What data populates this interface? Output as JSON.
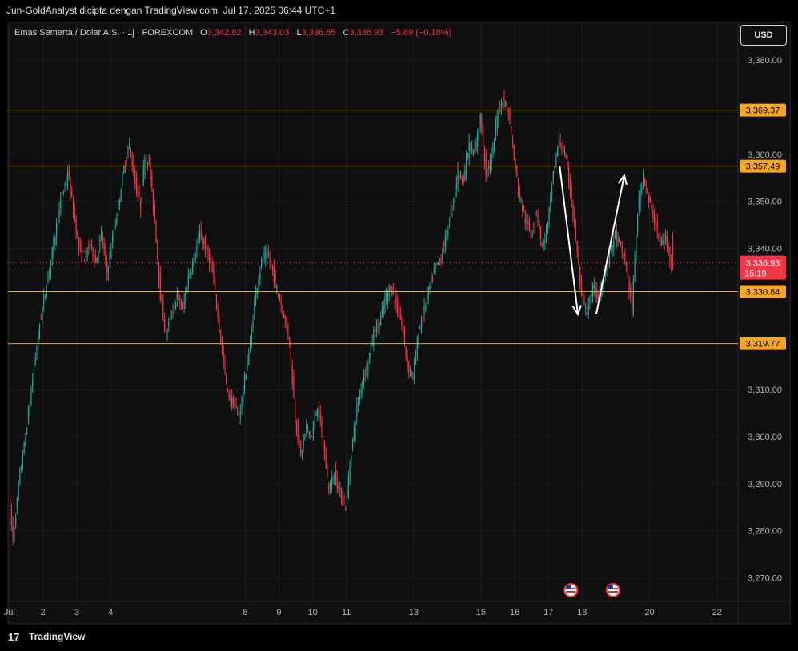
{
  "header": {
    "attribution": "Jun-GoldAnalyst dicipta dengan TradingView.com, Jul 17, 2025 06:44 UTC+1"
  },
  "legend": {
    "symbol": "Emas Semerta / Dolar A.S. · 1j · FOREXCOM",
    "open_label": "O",
    "open": "3,342.82",
    "high_label": "H",
    "high": "3,343.03",
    "low_label": "L",
    "low": "3,336.65",
    "close_label": "C",
    "close": "3,336.93",
    "change": "−5.89 (−0.18%)"
  },
  "currency_button": "USD",
  "footer": {
    "brand": "TradingView",
    "logo_text": "17"
  },
  "colors": {
    "up": "#26a69a",
    "down": "#f23645",
    "level": "#f5a623",
    "arrow": "#ffffff",
    "price_tag": "#f23645"
  },
  "icons": [
    "us-flag-icon",
    "us-flag-icon"
  ],
  "chart_data": {
    "type": "candlestick",
    "yaxis_ticks": [
      "3,380.00",
      "3,360.00",
      "3,350.00",
      "3,340.00",
      "3,310.00",
      "3,300.00",
      "3,290.00",
      "3,280.00",
      "3,270.00"
    ],
    "yaxis_tick_values": [
      3380,
      3360,
      3350,
      3340,
      3310,
      3300,
      3290,
      3280,
      3270
    ],
    "ylim": [
      3265,
      3388
    ],
    "xaxis_ticks": [
      "Jul",
      "2",
      "3",
      "4",
      "8",
      "9",
      "10",
      "11",
      "13",
      "15",
      "16",
      "17",
      "18",
      "20",
      "22"
    ],
    "xaxis_tick_hours": [
      0,
      24,
      48,
      72,
      168,
      192,
      216,
      240,
      288,
      336,
      360,
      384,
      408,
      456,
      504
    ],
    "xlim_hours": [
      -1,
      519
    ],
    "levels": [
      {
        "value": 3369.37,
        "label": "3,369.37"
      },
      {
        "value": 3357.49,
        "label": "3,357.49"
      },
      {
        "value": 3330.84,
        "label": "3,330.84"
      },
      {
        "value": 3319.77,
        "label": "3,319.77"
      }
    ],
    "current_price": {
      "value": 3336.93,
      "label": "3,336.93",
      "countdown": "15:19"
    },
    "arrows": [
      {
        "from": [
          392,
          3357.5
        ],
        "to": [
          405,
          3326
        ]
      },
      {
        "from": [
          418,
          3326
        ],
        "to": [
          438,
          3355.5
        ]
      }
    ],
    "events": [
      {
        "hour": 400,
        "icon": "us-flag-icon"
      },
      {
        "hour": 430,
        "icon": "us-flag-icon"
      }
    ],
    "price_path": [
      [
        0,
        3288
      ],
      [
        3,
        3278
      ],
      [
        8,
        3292
      ],
      [
        12,
        3300
      ],
      [
        17,
        3312
      ],
      [
        22,
        3324
      ],
      [
        28,
        3334
      ],
      [
        33,
        3343
      ],
      [
        38,
        3351
      ],
      [
        42,
        3356
      ],
      [
        46,
        3348
      ],
      [
        50,
        3340
      ],
      [
        54,
        3338
      ],
      [
        58,
        3341
      ],
      [
        62,
        3337
      ],
      [
        66,
        3343
      ],
      [
        70,
        3335
      ],
      [
        74,
        3342
      ],
      [
        78,
        3349
      ],
      [
        82,
        3357
      ],
      [
        86,
        3362
      ],
      [
        90,
        3354
      ],
      [
        94,
        3349
      ],
      [
        97,
        3360
      ],
      [
        100,
        3358
      ],
      [
        104,
        3346
      ],
      [
        108,
        3330
      ],
      [
        112,
        3322
      ],
      [
        116,
        3326
      ],
      [
        120,
        3330
      ],
      [
        124,
        3327
      ],
      [
        128,
        3334
      ],
      [
        132,
        3338
      ],
      [
        136,
        3343
      ],
      [
        140,
        3340
      ],
      [
        144,
        3337
      ],
      [
        148,
        3328
      ],
      [
        152,
        3318
      ],
      [
        156,
        3309
      ],
      [
        160,
        3307
      ],
      [
        164,
        3304
      ],
      [
        168,
        3312
      ],
      [
        172,
        3320
      ],
      [
        176,
        3331
      ],
      [
        180,
        3337
      ],
      [
        184,
        3339
      ],
      [
        188,
        3335
      ],
      [
        192,
        3330
      ],
      [
        196,
        3326
      ],
      [
        200,
        3320
      ],
      [
        204,
        3304
      ],
      [
        208,
        3296
      ],
      [
        212,
        3302
      ],
      [
        216,
        3300
      ],
      [
        220,
        3307
      ],
      [
        224,
        3298
      ],
      [
        228,
        3289
      ],
      [
        232,
        3292
      ],
      [
        236,
        3288
      ],
      [
        240,
        3285
      ],
      [
        244,
        3297
      ],
      [
        248,
        3306
      ],
      [
        252,
        3312
      ],
      [
        256,
        3316
      ],
      [
        260,
        3322
      ],
      [
        264,
        3324
      ],
      [
        268,
        3329
      ],
      [
        272,
        3332
      ],
      [
        276,
        3328
      ],
      [
        280,
        3324
      ],
      [
        284,
        3315
      ],
      [
        288,
        3313
      ],
      [
        292,
        3322
      ],
      [
        296,
        3327
      ],
      [
        300,
        3332
      ],
      [
        304,
        3336
      ],
      [
        308,
        3338
      ],
      [
        312,
        3343
      ],
      [
        316,
        3349
      ],
      [
        320,
        3356
      ],
      [
        324,
        3355
      ],
      [
        328,
        3362
      ],
      [
        332,
        3360
      ],
      [
        336,
        3368
      ],
      [
        340,
        3356
      ],
      [
        344,
        3359
      ],
      [
        348,
        3368
      ],
      [
        352,
        3372
      ],
      [
        356,
        3369
      ],
      [
        360,
        3359
      ],
      [
        364,
        3351
      ],
      [
        368,
        3346
      ],
      [
        372,
        3343
      ],
      [
        376,
        3348
      ],
      [
        380,
        3340
      ],
      [
        384,
        3345
      ],
      [
        388,
        3356
      ],
      [
        392,
        3363
      ],
      [
        396,
        3360
      ],
      [
        400,
        3353
      ],
      [
        404,
        3342
      ],
      [
        408,
        3330
      ],
      [
        412,
        3326
      ],
      [
        416,
        3332
      ],
      [
        420,
        3329
      ],
      [
        424,
        3334
      ],
      [
        428,
        3339
      ],
      [
        432,
        3343
      ],
      [
        436,
        3340
      ],
      [
        440,
        3336
      ],
      [
        444,
        3327
      ],
      [
        448,
        3348
      ],
      [
        452,
        3356
      ],
      [
        456,
        3350
      ],
      [
        460,
        3346
      ],
      [
        464,
        3341
      ],
      [
        468,
        3342
      ],
      [
        472,
        3337
      ]
    ]
  }
}
